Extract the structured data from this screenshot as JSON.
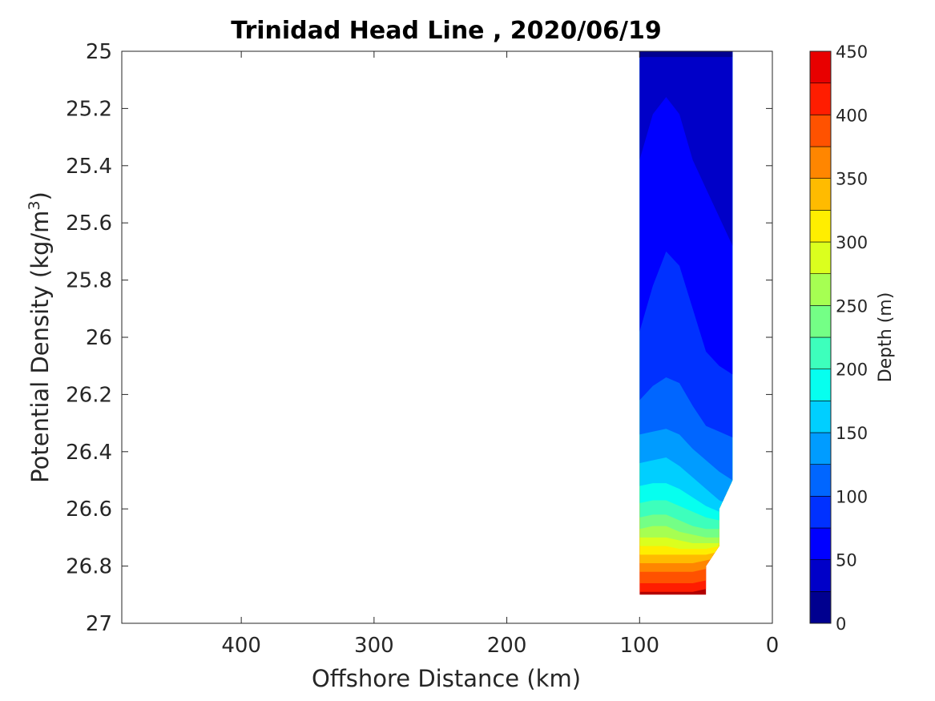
{
  "chart_data": {
    "type": "heatmap",
    "subtype": "filled-contour",
    "title": "Trinidad Head Line , 2020/06/19",
    "xlabel": "Offshore Distance (km)",
    "ylabel_main": "Potential Density (kg/m",
    "ylabel_sup": "3",
    "ylabel_close": ")",
    "x_axis": {
      "range": [
        490,
        0
      ],
      "reversed": true,
      "ticks": [
        400,
        300,
        200,
        100,
        0
      ],
      "tick_labels": [
        "400",
        "300",
        "200",
        "100",
        "0"
      ]
    },
    "y_axis": {
      "range": [
        25,
        27
      ],
      "reversed": true,
      "ticks": [
        25,
        25.2,
        25.4,
        25.6,
        25.8,
        26,
        26.2,
        26.4,
        26.6,
        26.8,
        27
      ],
      "tick_labels": [
        "25",
        "25.2",
        "25.4",
        "25.6",
        "25.8",
        "26",
        "26.2",
        "26.4",
        "26.6",
        "26.8",
        "27"
      ]
    },
    "colorbar": {
      "label": "Depth (m)",
      "range": [
        0,
        450
      ],
      "levels": [
        0,
        25,
        50,
        75,
        100,
        125,
        150,
        175,
        200,
        225,
        250,
        275,
        300,
        325,
        350,
        375,
        400,
        425,
        450
      ],
      "colors": [
        "#00008f",
        "#0000c8",
        "#0000ff",
        "#0031ff",
        "#0066ff",
        "#009cff",
        "#00cfff",
        "#06ffef",
        "#3dffbc",
        "#74ff86",
        "#a6ff52",
        "#dbff1e",
        "#ffee00",
        "#ffbb00",
        "#ff8600",
        "#ff5200",
        "#ff1d00",
        "#e80000",
        "#b20000"
      ],
      "ticks": [
        0,
        50,
        100,
        150,
        200,
        250,
        300,
        350,
        400,
        450
      ],
      "tick_labels": [
        "0",
        "50",
        "100",
        "150",
        "200",
        "250",
        "300",
        "350",
        "400",
        "450"
      ]
    },
    "grid": false,
    "stations_km": [
      100,
      90,
      80,
      70,
      60,
      50,
      40,
      30
    ],
    "contour_boundaries_density": [
      {
        "level": 25,
        "values": [
          25.02,
          25.02,
          25.02,
          25.02,
          25.02,
          25.02,
          25.02,
          25.02
        ]
      },
      {
        "level": 50,
        "values": [
          25.38,
          25.22,
          25.16,
          25.22,
          25.38,
          25.48,
          25.58,
          25.68
        ]
      },
      {
        "level": 75,
        "values": [
          25.98,
          25.82,
          25.7,
          25.75,
          25.9,
          26.05,
          26.1,
          26.13
        ]
      },
      {
        "level": 100,
        "values": [
          26.22,
          26.17,
          26.14,
          26.16,
          26.24,
          26.31,
          26.33,
          26.35
        ]
      },
      {
        "level": 125,
        "values": [
          26.34,
          26.33,
          26.32,
          26.34,
          26.39,
          26.43,
          26.47,
          26.5
        ]
      },
      {
        "level": 150,
        "values": [
          26.44,
          26.43,
          26.42,
          26.45,
          26.49,
          26.53,
          26.57,
          26.59
        ]
      },
      {
        "level": 175,
        "values": [
          26.52,
          26.51,
          26.51,
          26.53,
          26.56,
          26.59,
          26.61,
          26.61
        ]
      },
      {
        "level": 200,
        "values": [
          26.58,
          26.57,
          26.57,
          26.59,
          26.61,
          26.63,
          26.64,
          26.63
        ]
      },
      {
        "level": 225,
        "values": [
          26.63,
          26.62,
          26.62,
          26.64,
          26.66,
          26.67,
          26.67,
          26.66
        ]
      },
      {
        "level": 250,
        "values": [
          26.67,
          26.66,
          26.66,
          26.68,
          26.69,
          26.7,
          26.7,
          26.68
        ]
      },
      {
        "level": 275,
        "values": [
          26.7,
          26.7,
          26.7,
          26.71,
          26.72,
          26.72,
          26.72,
          26.7
        ]
      },
      {
        "level": 300,
        "values": [
          26.73,
          26.73,
          26.73,
          26.74,
          26.74,
          26.74,
          26.73,
          26.72
        ]
      },
      {
        "level": 325,
        "values": [
          26.76,
          26.76,
          26.76,
          26.76,
          26.76,
          26.76,
          26.75,
          26.74
        ]
      },
      {
        "level": 350,
        "values": [
          26.79,
          26.79,
          26.79,
          26.79,
          26.79,
          26.78,
          26.77,
          26.76
        ]
      },
      {
        "level": 375,
        "values": [
          26.82,
          26.82,
          26.82,
          26.82,
          26.82,
          26.81,
          26.8,
          26.79
        ]
      },
      {
        "level": 400,
        "values": [
          26.86,
          26.86,
          26.86,
          26.86,
          26.86,
          26.85,
          26.84,
          26.83
        ]
      },
      {
        "level": 425,
        "values": [
          26.89,
          26.89,
          26.89,
          26.89,
          26.89,
          26.88,
          26.87,
          26.86
        ]
      }
    ],
    "data_extent": {
      "x_range_km": [
        30,
        100
      ],
      "y_top_density": 25,
      "bottom_profile": [
        {
          "x": 100,
          "y": 26.9
        },
        {
          "x": 50,
          "y": 26.9
        },
        {
          "x": 50,
          "y": 26.8
        },
        {
          "x": 40,
          "y": 26.73
        },
        {
          "x": 40,
          "y": 26.6
        },
        {
          "x": 30,
          "y": 26.5
        }
      ]
    }
  }
}
